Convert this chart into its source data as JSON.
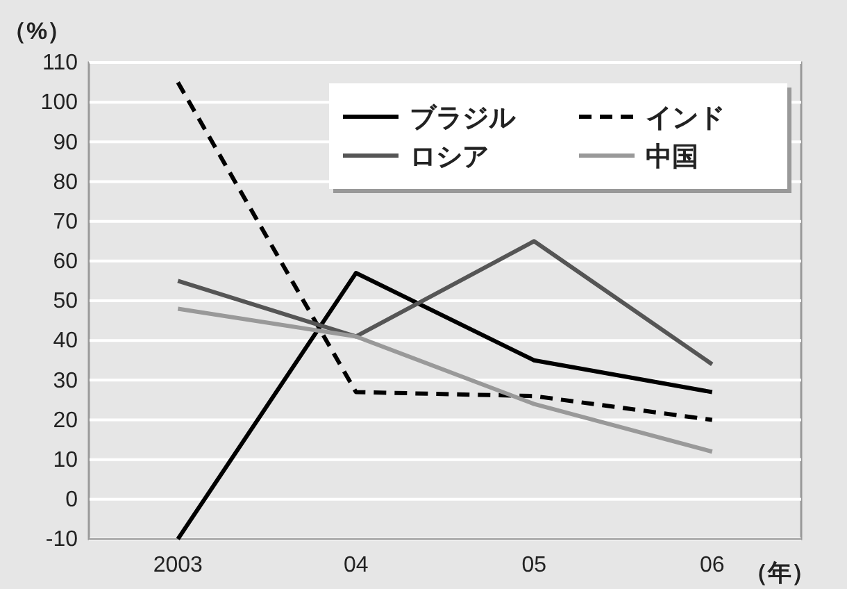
{
  "chart_data": {
    "type": "line",
    "ylabel": "（%）",
    "xlabel": "（年）",
    "categories": [
      "2003",
      "04",
      "05",
      "06"
    ],
    "ylim": [
      -10,
      110
    ],
    "yticks": [
      -10,
      0,
      10,
      20,
      30,
      40,
      50,
      60,
      70,
      80,
      90,
      100,
      110
    ],
    "grid": "y",
    "legend": "top right",
    "marker": "none",
    "series": [
      {
        "name": "ブラジル",
        "color": "#000000",
        "line_style": "solid",
        "values": [
          -10,
          57,
          35,
          27
        ]
      },
      {
        "name": "インド",
        "color": "#000000",
        "line_style": "dashed",
        "values": [
          105,
          27,
          26,
          20
        ]
      },
      {
        "name": "ロシア",
        "color": "#555555",
        "line_style": "solid",
        "values": [
          55,
          41,
          65,
          34
        ]
      },
      {
        "name": "中国",
        "color": "#999999",
        "line_style": "solid",
        "values": [
          48,
          41,
          24,
          12
        ]
      }
    ]
  }
}
